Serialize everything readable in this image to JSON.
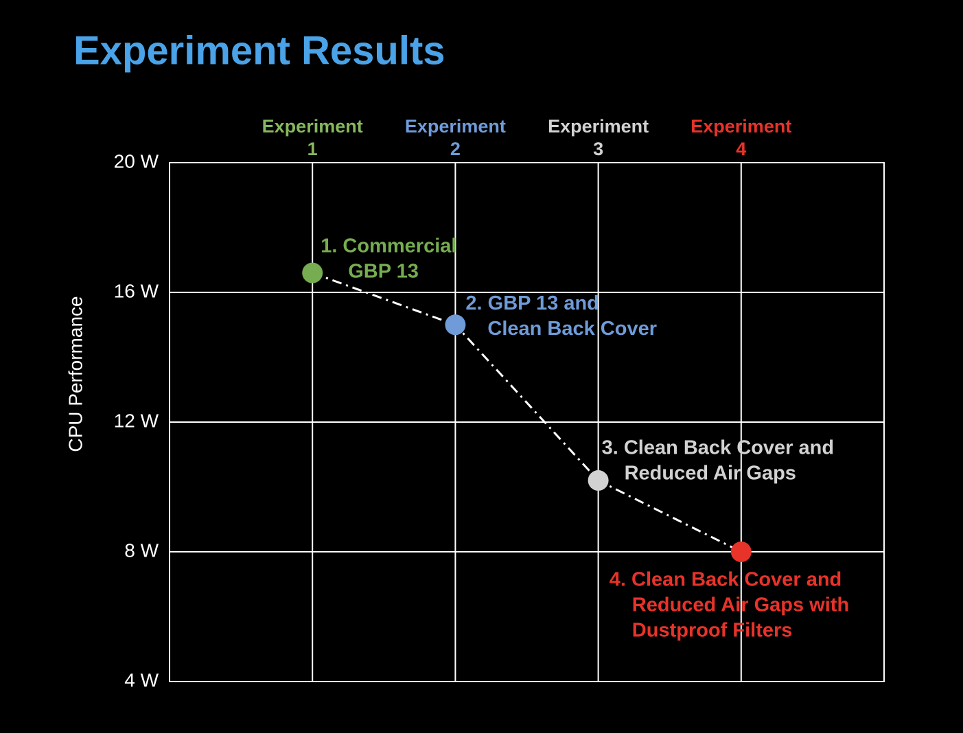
{
  "chart_data": {
    "type": "line",
    "title": "Experiment Results",
    "y_label": "CPU Performance",
    "categories": [
      "Experiment 1",
      "Experiment 2",
      "Experiment 3",
      "Experiment 4"
    ],
    "category_colors": [
      "#86b85e",
      "#6f9bd8",
      "#d2d2d2",
      "#e8332a"
    ],
    "x": [
      1,
      2,
      3,
      4
    ],
    "xlim": [
      0,
      5
    ],
    "xticks": [
      1,
      2,
      3,
      4
    ],
    "values": [
      16.6,
      15.0,
      10.2,
      8.0
    ],
    "point_colors": [
      "#76ad51",
      "#6f9bd8",
      "#d2d2d2",
      "#e8332a"
    ],
    "line_color": "#ffffff",
    "ylim": [
      4,
      20
    ],
    "yticks": [
      {
        "value": 4,
        "label": "4 W"
      },
      {
        "value": 8,
        "label": "8 W"
      },
      {
        "value": 12,
        "label": "12 W"
      },
      {
        "value": 16,
        "label": "16 W"
      },
      {
        "value": 20,
        "label": "20 W"
      }
    ],
    "grid": true,
    "annotations": [
      {
        "lines": [
          "1.  Commercial",
          "GBP 13"
        ]
      },
      {
        "lines": [
          "2. GBP 13 and",
          "Clean Back Cover"
        ]
      },
      {
        "lines": [
          "3. Clean Back Cover and",
          "Reduced Air Gaps"
        ]
      },
      {
        "lines": [
          "4. Clean Back Cover and",
          "Reduced Air Gaps with",
          "Dustproof Filters"
        ]
      }
    ]
  }
}
